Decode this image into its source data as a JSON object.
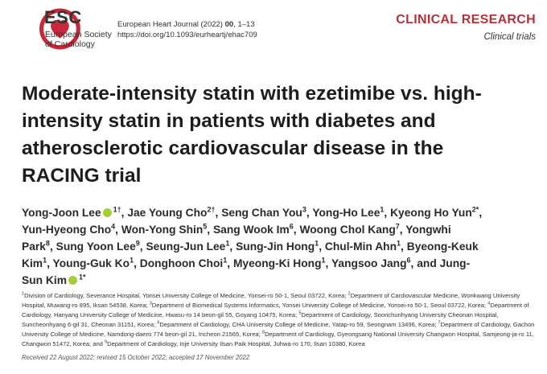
{
  "header": {
    "logo": "ESC",
    "society": [
      "European Society",
      "of Cardiology"
    ],
    "journal_name": "European Heart Journal (2022)",
    "volume": "00",
    "pages": ", 1–13",
    "doi": "https://doi.org/10.1093/eurheartj/ehac709",
    "section": "CLINICAL RESEARCH",
    "subsection": "Clinical trials"
  },
  "title": "Moderate-intensity statin with ezetimibe vs. high-intensity statin in patients with diabetes and atherosclerotic cardiovascular disease in the RACING trial",
  "authors": [
    {
      "name": "Yong-Joon Lee",
      "sup": "1†",
      "after": ",",
      "orcid": true
    },
    {
      "name": "Jae Young Cho",
      "sup": "2†",
      "after": ","
    },
    {
      "name": "Seng Chan You",
      "sup": "3",
      "after": ","
    },
    {
      "name": "Yong-Ho Lee",
      "sup": "1",
      "after": ","
    },
    {
      "name": "Kyeong Ho Yun",
      "sup": "2*",
      "after": ","
    },
    {
      "name": "Yun-Hyeong Cho",
      "sup": "4",
      "after": ","
    },
    {
      "name": "Won-Yong Shin",
      "sup": "5",
      "after": ","
    },
    {
      "name": "Sang Wook Im",
      "sup": "6",
      "after": ","
    },
    {
      "name": "Woong Chol Kang",
      "sup": "7",
      "after": ","
    },
    {
      "name": "Yongwhi Park",
      "sup": "8",
      "after": ","
    },
    {
      "name": "Sung Yoon Lee",
      "sup": "9",
      "after": ","
    },
    {
      "name": "Seung-Jun Lee",
      "sup": "1",
      "after": ","
    },
    {
      "name": "Sung-Jin Hong",
      "sup": "1",
      "after": ","
    },
    {
      "name": "Chul-Min Ahn",
      "sup": "1",
      "after": ","
    },
    {
      "name": "Byeong-Keuk Kim",
      "sup": "1",
      "after": ","
    },
    {
      "name": "Young-Guk Ko",
      "sup": "1",
      "after": ","
    },
    {
      "name": "Donghoon Choi",
      "sup": "1",
      "after": ","
    },
    {
      "name": "Myeong-Ki Hong",
      "sup": "1",
      "after": ","
    },
    {
      "name": "Yangsoo Jang",
      "sup": "6",
      "after": ","
    },
    {
      "name": "Jung-Sun Kim",
      "sup": "1*",
      "before": "and",
      "orcid": true
    }
  ],
  "affiliations": [
    {
      "num": "1",
      "text": "Division of Cardiology, Severance Hospital, Yonsei University College of Medicine, Yonsei-ro 50-1, Seoul 03722, Korea;"
    },
    {
      "num": "2",
      "text": "Department of Cardiovascular Medicine, Wonkwang University Hospital, Muwang-ro 895, Iksan 54538, Korea;"
    },
    {
      "num": "3",
      "text": "Department of Biomedical Systems Informatics, Yonsei University College of Medicine, Yonsei-ro 50-1, Seoul 03722, Korea;"
    },
    {
      "num": "4",
      "text": "Department of Cardiology, Hanyang University College of Medicine, Hwasu-ro 14 beon-gil 55, Goyang 10475, Korea;"
    },
    {
      "num": "5",
      "text": "Department of Cardiology, Soonchunhyang University Cheonan Hospital, Suncheonhyang 6-gil 31, Cheonan 31151, Korea;"
    },
    {
      "num": "6",
      "text": "Department of Cardiology, CHA University College of Medicine, Yatap-ro 59, Seongnam 13496, Korea;"
    },
    {
      "num": "7",
      "text": "Department of Cardiology, Gachon University College of Medicine, Namdong-daero 774 beon-gil 21, Incheon 21565, Korea;"
    },
    {
      "num": "8",
      "text": "Department of Cardiology, Gyeongsang National University Changwon Hospital, Samjeong-ja-ro 11, Changwon 51472, Korea; and"
    },
    {
      "num": "9",
      "text": "Department of Cardiology, Inje University Ilsan Paik Hospital, Juhwa-ro 170, Ilsan 10380, Korea"
    }
  ],
  "received": "Received 22 August 2022; revised 15 October 2022; accepted 17 November 2022"
}
